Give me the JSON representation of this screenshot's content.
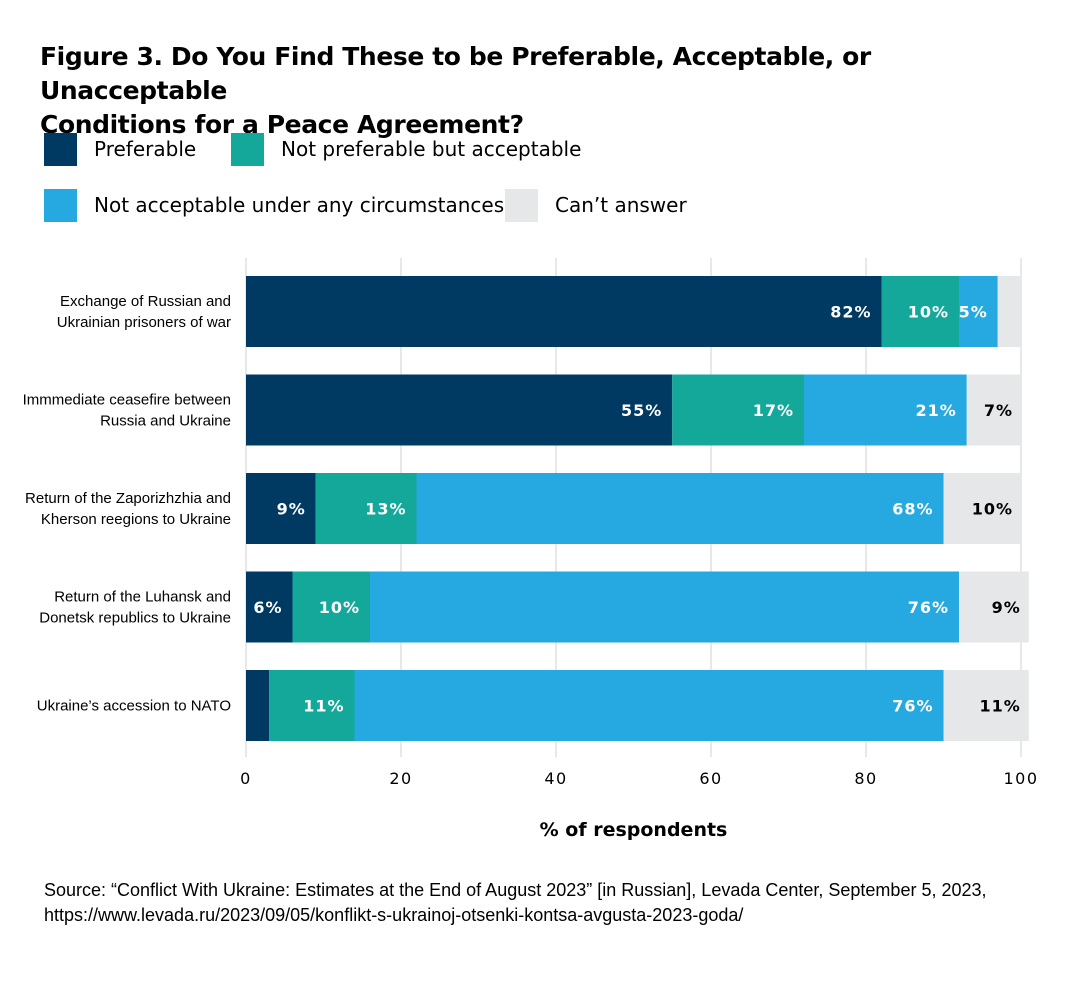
{
  "title_line1": "Figure 3. Do You Find These to be Preferable, Acceptable, or Unacceptable",
  "title_line2": "Conditions for a Peace Agreement?",
  "legend": [
    {
      "label": "Preferable",
      "color": "#003a63"
    },
    {
      "label": "Not preferable but acceptable",
      "color": "#14a89a"
    },
    {
      "label": "Not acceptable under any circumstances",
      "color": "#25a9e0"
    },
    {
      "label": "Can’t answer",
      "color": "#e6e7e8"
    }
  ],
  "chart_data": {
    "type": "bar",
    "orientation": "horizontal",
    "stacked": true,
    "categories": [
      [
        "Exchange of Russian and",
        "Ukrainian prisoners of war"
      ],
      [
        "Immmediate ceasefire between",
        "Russia and Ukraine"
      ],
      [
        "Return of the Zaporizhzhia and",
        "Kherson reegions to Ukraine"
      ],
      [
        "Return of the Luhansk and",
        "Donetsk republics to Ukraine"
      ],
      [
        "Ukraine’s accession to NATO"
      ]
    ],
    "series": [
      {
        "name": "Preferable",
        "color": "#003a63",
        "label_color": "#ffffff",
        "values": [
          82,
          55,
          9,
          6,
          3
        ],
        "labels": [
          "82%",
          "55%",
          "9%",
          "6%",
          ""
        ]
      },
      {
        "name": "Not preferable but acceptable",
        "color": "#14a89a",
        "label_color": "#ffffff",
        "values": [
          10,
          17,
          13,
          10,
          11
        ],
        "labels": [
          "10%",
          "17%",
          "13%",
          "10%",
          "11%"
        ]
      },
      {
        "name": "Not acceptable under any circumstances",
        "color": "#25a9e0",
        "label_color": "#ffffff",
        "values": [
          5,
          21,
          68,
          76,
          76
        ],
        "labels": [
          "5%",
          "21%",
          "68%",
          "76%",
          "76%"
        ]
      },
      {
        "name": "Can’t answer",
        "color": "#e6e7e8",
        "label_color": "#000000",
        "values": [
          3,
          7,
          10,
          9,
          11
        ],
        "labels": [
          "",
          "7%",
          "10%",
          "9%",
          "11%"
        ]
      }
    ],
    "xlim": [
      0,
      100
    ],
    "xticks": [
      0,
      20,
      40,
      60,
      80,
      100
    ],
    "xlabel": "% of respondents",
    "ylabel": "",
    "grid": true
  },
  "source": {
    "line1": "Source: “Conflict With Ukraine: Estimates at the End of August 2023” [in Russian], Levada Center, September 5, 2023,",
    "line2": "https://www.levada.ru/2023/09/05/konflikt-s-ukrainoj-otsenki-kontsa-avgusta-2023-goda/"
  }
}
